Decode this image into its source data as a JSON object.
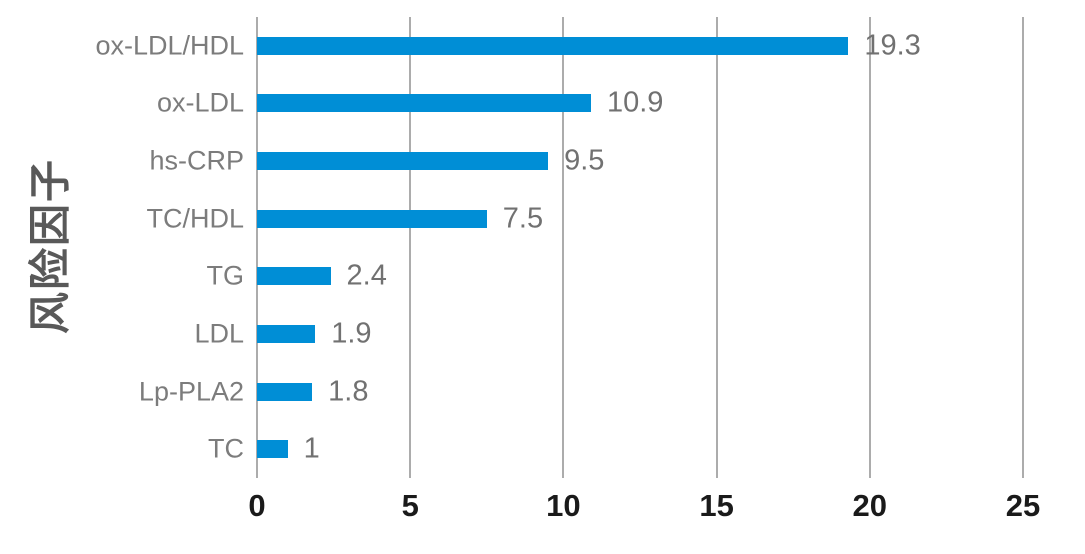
{
  "chart_data": {
    "type": "bar",
    "orientation": "horizontal",
    "title": "",
    "xlabel": "",
    "ylabel": "风险因子",
    "categories": [
      "ox-LDL/HDL",
      "ox-LDL",
      "hs-CRP",
      "TC/HDL",
      "TG",
      "LDL",
      "Lp-PLA2",
      "TC"
    ],
    "values": [
      19.3,
      10.9,
      9.5,
      7.5,
      2.4,
      1.9,
      1.8,
      1
    ],
    "value_labels": [
      "19.3",
      "10.9",
      "9.5",
      "7.5",
      "2.4",
      "1.9",
      "1.8",
      "1"
    ],
    "xlim": [
      0,
      25
    ],
    "xticks": [
      "0",
      "5",
      "10",
      "15",
      "20",
      "25"
    ],
    "grid": "vertical-gridlines-on",
    "legend": "none",
    "data_labels": "outside-end",
    "colors": {
      "bar": "#008ED6",
      "gridline": "#ACACAC",
      "category_label": "#7C7C7C",
      "value_label": "#717171",
      "tick_label": "#1A1A1A",
      "axis_title": "#595959",
      "background": "#FFFFFF"
    }
  }
}
